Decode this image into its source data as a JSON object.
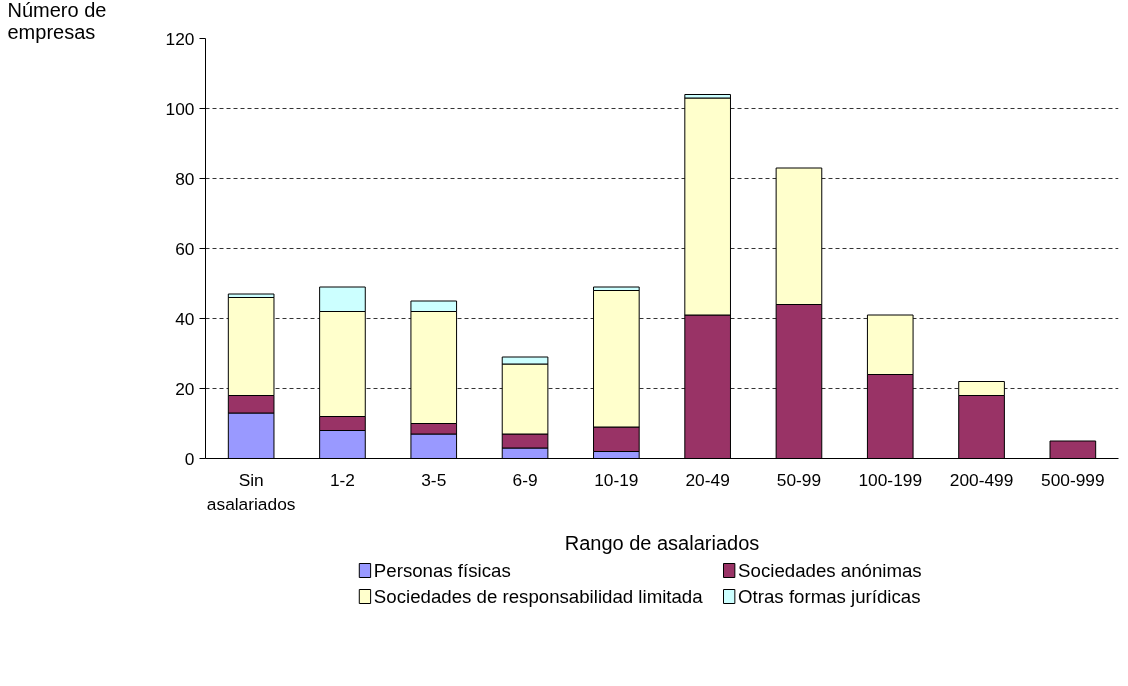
{
  "chart_data": {
    "type": "bar",
    "stacked": true,
    "xlabel": "Rango de asalariados",
    "ylabel": "Número de empresas",
    "categories": [
      "Sin asalariados",
      "1-2",
      "3-5",
      "6-9",
      "10-19",
      "20-49",
      "50-99",
      "100-199",
      "200-499",
      "500-999"
    ],
    "series": [
      {
        "name": "Personas físicas",
        "color": "#9999ff",
        "values": [
          13,
          8,
          7,
          3,
          2,
          null,
          null,
          null,
          null,
          null
        ]
      },
      {
        "name": "Sociedades anónimas",
        "color": "#993366",
        "values": [
          5,
          4,
          3,
          4,
          7,
          41,
          44,
          24,
          18,
          5
        ]
      },
      {
        "name": "Sociedades de responsabilidad limitada",
        "color": "#ffffcc",
        "values": [
          28,
          30,
          32,
          20,
          39,
          62,
          39,
          17,
          4,
          null
        ]
      },
      {
        "name": "Otras formas jurídicas",
        "color": "#ccffff",
        "values": [
          1,
          7,
          3,
          2,
          1,
          1,
          null,
          null,
          null,
          null
        ]
      }
    ],
    "ylim": [
      0,
      120
    ],
    "yticks": [
      0,
      20,
      40,
      60,
      80,
      100,
      120
    ],
    "grid": "y",
    "legend": "bottom"
  }
}
